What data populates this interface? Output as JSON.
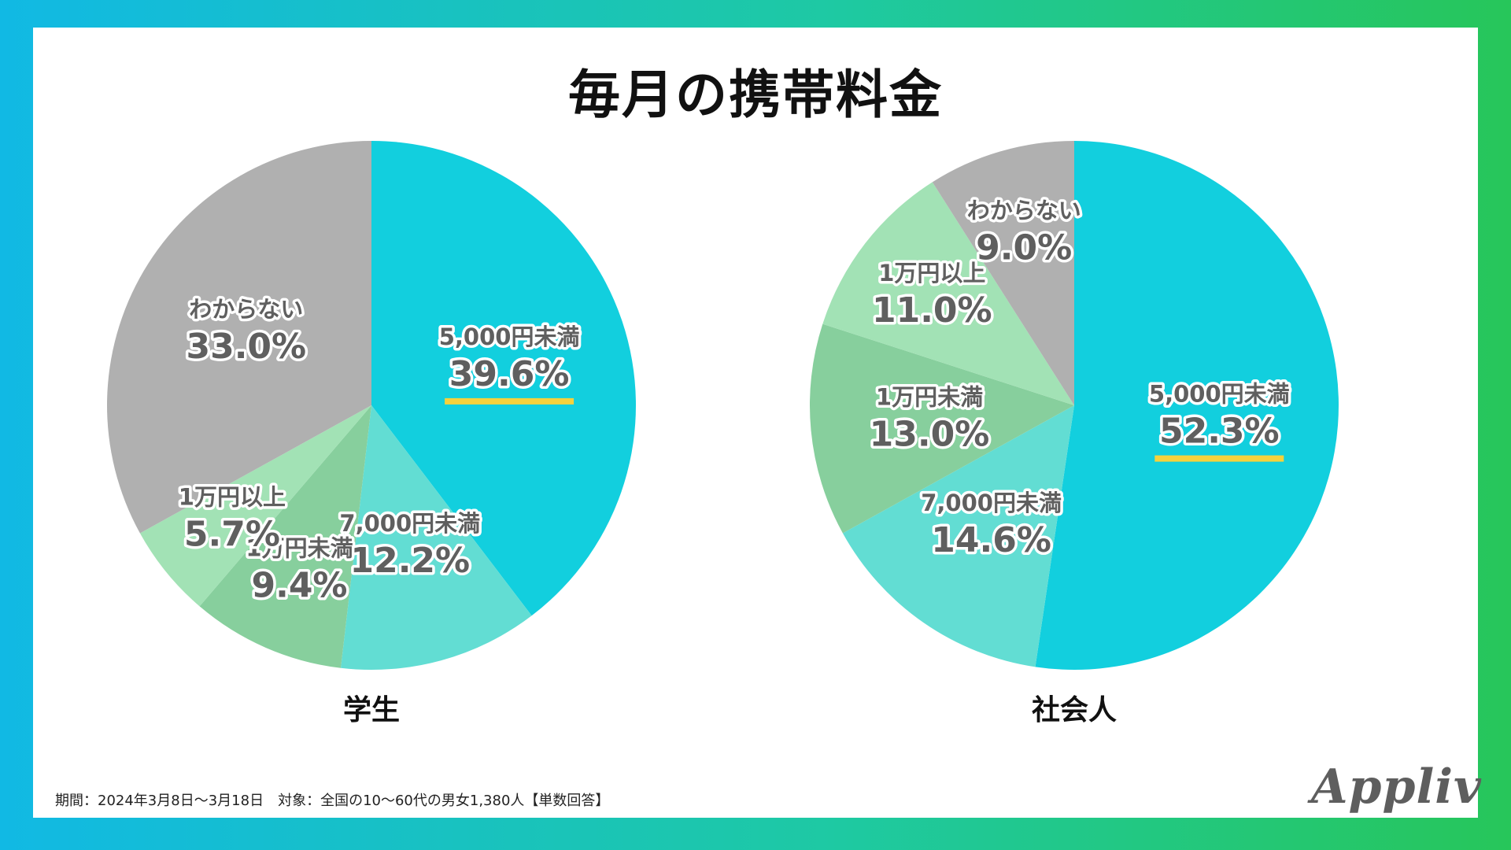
{
  "title": "毎月の携帯料金",
  "footnote": "期間：2024年3月8日〜3月18日　対象：全国の10〜60代の男女1,380人【単数回答】",
  "logo": "Appliv",
  "colors": {
    "cyan": "#12cfde",
    "teal": "#62ddd3",
    "green": "#87cf9d",
    "light_green": "#a2e2b5",
    "gray": "#b0b0b0",
    "underline": "#f5d23d",
    "label_text": "#5f5f5f"
  },
  "chart_data": [
    {
      "type": "pie",
      "title": "学生",
      "highlight": "5,000円未満",
      "slices": [
        {
          "label": "5,000円未満",
          "value": 39.6,
          "display": "39.6%",
          "color": "#12cfde"
        },
        {
          "label": "7,000円未満",
          "value": 12.2,
          "display": "12.2%",
          "color": "#62ddd3"
        },
        {
          "label": "1万円未満",
          "value": 9.4,
          "display": "9.4%",
          "color": "#87cf9d"
        },
        {
          "label": "1万円以上",
          "value": 5.7,
          "display": "5.7%",
          "color": "#a2e2b5"
        },
        {
          "label": "わからない",
          "value": 33.0,
          "display": "33.0%",
          "color": "#b0b0b0"
        }
      ]
    },
    {
      "type": "pie",
      "title": "社会人",
      "highlight": "5,000円未満",
      "slices": [
        {
          "label": "5,000円未満",
          "value": 52.3,
          "display": "52.3%",
          "color": "#12cfde"
        },
        {
          "label": "7,000円未満",
          "value": 14.6,
          "display": "14.6%",
          "color": "#62ddd3"
        },
        {
          "label": "1万円未満",
          "value": 13.0,
          "display": "13.0%",
          "color": "#87cf9d"
        },
        {
          "label": "1万円以上",
          "value": 11.0,
          "display": "11.0%",
          "color": "#a2e2b5"
        },
        {
          "label": "わからない",
          "value": 9.0,
          "display": "9.0%",
          "color": "#b0b0b0"
        }
      ]
    }
  ]
}
